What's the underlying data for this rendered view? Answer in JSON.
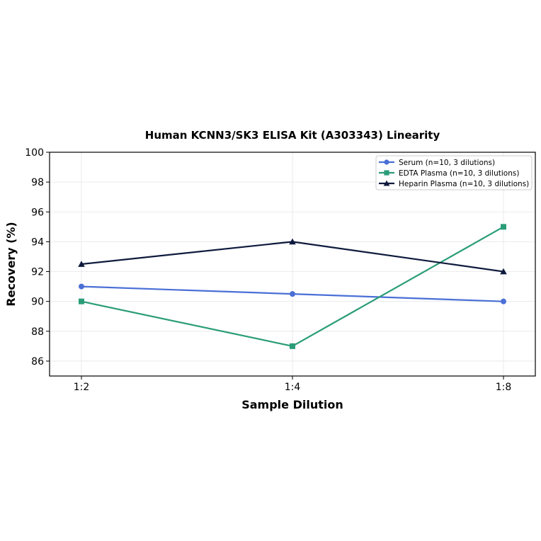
{
  "chart_data": {
    "type": "line",
    "title": "Human KCNN3/SK3 ELISA Kit (A303343) Linearity",
    "xlabel": "Sample Dilution",
    "ylabel": "Recovery (%)",
    "categories": [
      "1:2",
      "1:4",
      "1:8"
    ],
    "ylim": [
      85,
      100
    ],
    "yticks": [
      86,
      88,
      90,
      92,
      94,
      96,
      98,
      100
    ],
    "grid": true,
    "legend_position": "top-right",
    "series": [
      {
        "name": "Serum (n=10, 3 dilutions)",
        "values": [
          91.0,
          90.5,
          90.0
        ],
        "color": "#4a6fd6",
        "marker": "circle"
      },
      {
        "name": "EDTA Plasma (n=10, 3 dilutions)",
        "values": [
          90.0,
          87.0,
          95.0
        ],
        "color": "#2a9d78",
        "marker": "square"
      },
      {
        "name": "Heparin Plasma (n=10, 3 dilutions)",
        "values": [
          92.5,
          94.0,
          92.0
        ],
        "color": "#0e1a3d",
        "marker": "triangle"
      }
    ]
  }
}
